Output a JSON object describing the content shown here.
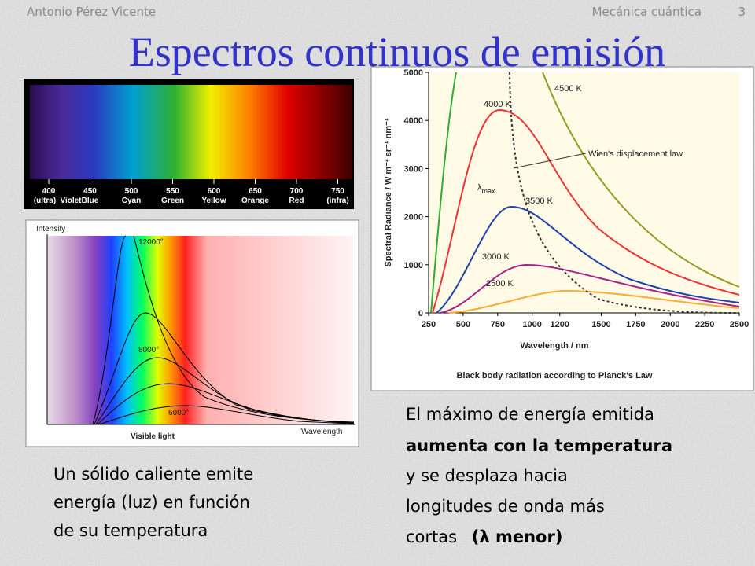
{
  "header": {
    "author": "Antonio Pérez Vicente",
    "course": "Mecánica cuántica",
    "page": "3",
    "title": "Espectros continuos de emisión"
  },
  "spectrum": {
    "wavelengths": [
      400,
      450,
      500,
      550,
      600,
      650,
      700,
      750
    ],
    "names": [
      "(ultra)",
      "Violet",
      "Blue",
      "Cyan",
      "Green",
      "Yellow",
      "Orange",
      "Red",
      "(infra)"
    ]
  },
  "intensity_figure": {
    "y_label": "Intensity",
    "x_label": "Wavelength",
    "caption": "Visible light",
    "curve_labels": [
      "12000°",
      "8000°",
      "6000°"
    ]
  },
  "planck_figure": {
    "y_label": "Spectral Radiance / W m⁻² sr⁻¹ nm⁻¹",
    "x_label": "Wavelength / nm",
    "caption": "Black body radiation according to Planck's Law",
    "yticks": [
      0,
      1000,
      2000,
      3000,
      4000,
      5000
    ],
    "xticks": [
      250,
      500,
      750,
      1000,
      1200,
      1500,
      1750,
      2000,
      2250,
      2500
    ],
    "curve_labels": [
      "4500 K",
      "4000 K",
      "3500 K",
      "3000 K",
      "2500 K"
    ],
    "wien_label": "Wien's displacement law",
    "lambda_max": {
      "symbol": "λ",
      "subscript": "max"
    }
  },
  "left_caption": [
    "Un sólido caliente emite",
    "energía (luz) en función",
    "de su temperatura"
  ],
  "right_caption": {
    "line1": "El máximo de energía emitida",
    "line2_bold": "aumenta con la temperatura",
    "line3": "y se desplaza hacia",
    "line4": "longitudes de onda más",
    "line5": "cortas",
    "line5_bold": "(λ menor)"
  }
}
